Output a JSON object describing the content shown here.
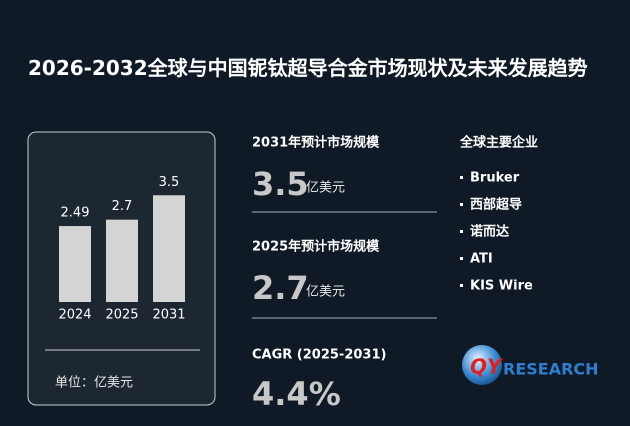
{
  "title": "2026-2032全球与中国铌钛超导合金市场现状及未来发展趋势",
  "chart_data": {
    "type": "bar",
    "categories": [
      "2024",
      "2025",
      "2031"
    ],
    "values": [
      2.49,
      2.7,
      3.5
    ],
    "color": "#d4d4d4",
    "unit_label": "单位：亿美元"
  },
  "stats": [
    {
      "label": "2031年预计市场规模",
      "value": "3.5",
      "unit": "亿美元"
    },
    {
      "label": "2025年预计市场规模",
      "value": "2.7",
      "unit": "亿美元"
    },
    {
      "label": "CAGR (2025-2031)",
      "value": "4.4%"
    }
  ],
  "companies": {
    "heading": "全球主要企业",
    "items": [
      "Bruker",
      "西部超导",
      "诺而达",
      "ATI",
      "KIS Wire"
    ]
  },
  "logo": {
    "mark": "QY",
    "text": "RESEARCH"
  }
}
